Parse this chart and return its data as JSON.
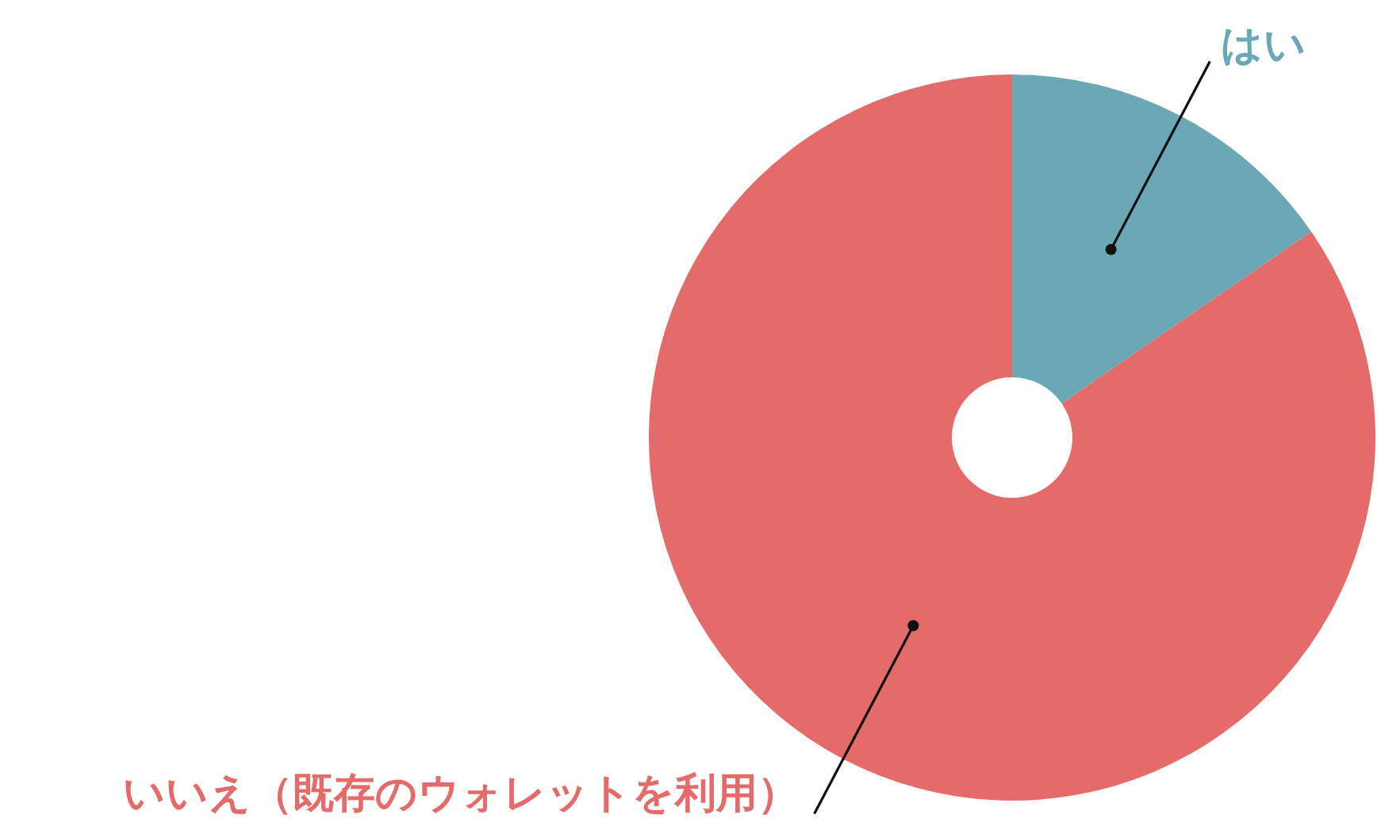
{
  "chart_data": {
    "type": "donut",
    "categories": [
      "はい",
      "いいえ（既存のウォレットを利用）"
    ],
    "values": [
      15.4,
      84.6
    ],
    "colors": [
      "#6aa8b5",
      "#e56a6a"
    ],
    "legend": false
  }
}
